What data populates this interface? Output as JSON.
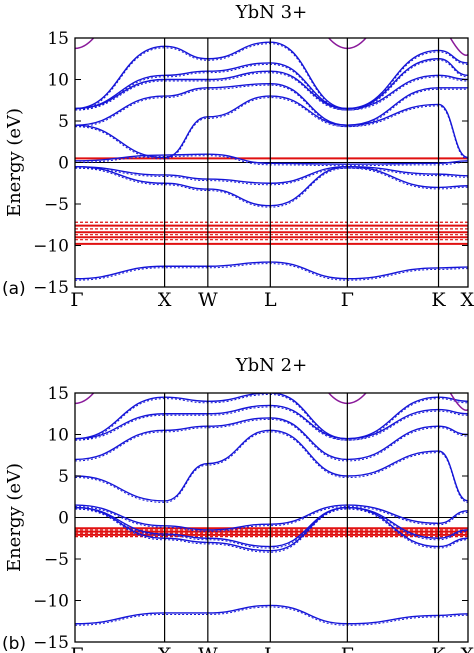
{
  "chart_data": [
    {
      "type": "line",
      "panel_label": "(a)",
      "title": "YbN 3+",
      "ylabel": "Energy (eV)",
      "ylim": [
        -15,
        15
      ],
      "yticks": [
        15,
        10,
        5,
        0,
        -5,
        -10,
        -15
      ],
      "xticks": [
        "Γ",
        "X",
        "W",
        "L",
        "Γ",
        "K",
        "X"
      ],
      "grid": false,
      "legend": "none",
      "colors": {
        "valence_conduction": "#1515d8",
        "f_states": "#e01010",
        "top_band": "#8a1a9a",
        "fermi": "#000000"
      },
      "series": [
        {
          "color": "#1515d8",
          "values": [
            [
              0,
              0.2
            ],
            [
              1,
              0.9
            ],
            [
              2,
              1.0
            ],
            [
              3,
              -0.1
            ],
            [
              4,
              -0.2
            ],
            [
              5,
              -0.1
            ],
            [
              6,
              0.2
            ]
          ]
        },
        {
          "color": "#1515d8",
          "values": [
            [
              0,
              -0.5
            ],
            [
              1,
              -1.5
            ],
            [
              2,
              -2.0
            ],
            [
              3,
              -2.5
            ],
            [
              4,
              -0.5
            ],
            [
              5,
              -1.4
            ],
            [
              6,
              -1.6
            ]
          ]
        },
        {
          "color": "#1515d8",
          "values": [
            [
              0,
              -0.5
            ],
            [
              1,
              -2.5
            ],
            [
              2,
              -3.2
            ],
            [
              3,
              -5.2
            ],
            [
              4,
              -0.5
            ],
            [
              5,
              -3.0
            ],
            [
              6,
              -2.8
            ]
          ]
        },
        {
          "color": "#1515d8",
          "values": [
            [
              0,
              -14.0
            ],
            [
              1,
              -12.5
            ],
            [
              2,
              -12.5
            ],
            [
              3,
              -12.0
            ],
            [
              4,
              -14.0
            ],
            [
              5,
              -12.7
            ],
            [
              6,
              -12.6
            ]
          ]
        },
        {
          "color": "#1515d8",
          "values": [
            [
              0,
              4.5
            ],
            [
              1,
              0.6
            ],
            [
              2,
              5.5
            ],
            [
              3,
              8.0
            ],
            [
              4,
              4.5
            ],
            [
              5,
              7.0
            ],
            [
              6,
              0.6
            ]
          ]
        },
        {
          "color": "#1515d8",
          "values": [
            [
              0,
              4.5
            ],
            [
              1,
              8.0
            ],
            [
              2,
              9.0
            ],
            [
              3,
              9.5
            ],
            [
              4,
              4.5
            ],
            [
              5,
              9.0
            ],
            [
              6,
              9.0
            ]
          ]
        },
        {
          "color": "#1515d8",
          "values": [
            [
              0,
              6.5
            ],
            [
              1,
              10.0
            ],
            [
              2,
              10.0
            ],
            [
              3,
              11.0
            ],
            [
              4,
              6.5
            ],
            [
              5,
              10.5
            ],
            [
              6,
              10.0
            ]
          ]
        },
        {
          "color": "#1515d8",
          "values": [
            [
              0,
              6.5
            ],
            [
              1,
              10.5
            ],
            [
              2,
              11.0
            ],
            [
              3,
              12.0
            ],
            [
              4,
              6.5
            ],
            [
              5,
              12.5
            ],
            [
              6,
              10.5
            ]
          ]
        },
        {
          "color": "#1515d8",
          "values": [
            [
              0,
              6.5
            ],
            [
              1,
              14.0
            ],
            [
              2,
              12.5
            ],
            [
              3,
              14.5
            ],
            [
              4,
              6.5
            ],
            [
              5,
              13.5
            ],
            [
              6,
              12.0
            ]
          ]
        }
      ],
      "f_levels": [
        0.5,
        -7.2,
        -7.6,
        -8.0,
        -8.4,
        -8.7,
        -9.0,
        -9.3,
        -9.8
      ]
    },
    {
      "type": "line",
      "panel_label": "(b)",
      "title": "YbN 2+",
      "ylabel": "Energy (eV)",
      "ylim": [
        -15,
        15
      ],
      "yticks": [
        15,
        10,
        5,
        0,
        -5,
        -10,
        -15
      ],
      "xticks": [
        "Γ",
        "X",
        "W",
        "L",
        "Γ",
        "K",
        "X"
      ],
      "grid": false,
      "legend": "none",
      "colors": {
        "valence_conduction": "#1515d8",
        "f_states": "#e01010",
        "top_band": "#8a1a9a",
        "fermi": "#000000"
      },
      "series": [
        {
          "color": "#1515d8",
          "values": [
            [
              0,
              1.5
            ],
            [
              1,
              -1.0
            ],
            [
              2,
              -1.5
            ],
            [
              3,
              -0.8
            ],
            [
              4,
              1.5
            ],
            [
              5,
              -0.7
            ],
            [
              6,
              0.8
            ]
          ]
        },
        {
          "color": "#1515d8",
          "values": [
            [
              0,
              1.2
            ],
            [
              1,
              -2.0
            ],
            [
              2,
              -2.5
            ],
            [
              3,
              -3.5
            ],
            [
              4,
              1.2
            ],
            [
              5,
              -2.5
            ],
            [
              6,
              -1.5
            ]
          ]
        },
        {
          "color": "#1515d8",
          "values": [
            [
              0,
              1.2
            ],
            [
              1,
              -2.5
            ],
            [
              2,
              -3.0
            ],
            [
              3,
              -4.0
            ],
            [
              4,
              1.2
            ],
            [
              5,
              -3.5
            ],
            [
              6,
              -2.5
            ]
          ]
        },
        {
          "color": "#1515d8",
          "values": [
            [
              0,
              -12.8
            ],
            [
              1,
              -11.5
            ],
            [
              2,
              -11.5
            ],
            [
              3,
              -10.6
            ],
            [
              4,
              -12.8
            ],
            [
              5,
              -11.8
            ],
            [
              6,
              -11.6
            ]
          ]
        },
        {
          "color": "#1515d8",
          "values": [
            [
              0,
              5.0
            ],
            [
              1,
              2.0
            ],
            [
              2,
              6.5
            ],
            [
              3,
              10.5
            ],
            [
              4,
              5.0
            ],
            [
              5,
              8.0
            ],
            [
              6,
              2.0
            ]
          ]
        },
        {
          "color": "#1515d8",
          "values": [
            [
              0,
              7.0
            ],
            [
              1,
              10.5
            ],
            [
              2,
              11.0
            ],
            [
              3,
              12.0
            ],
            [
              4,
              7.0
            ],
            [
              5,
              11.0
            ],
            [
              6,
              10.0
            ]
          ]
        },
        {
          "color": "#1515d8",
          "values": [
            [
              0,
              9.5
            ],
            [
              1,
              12.5
            ],
            [
              2,
              12.5
            ],
            [
              3,
              13.5
            ],
            [
              4,
              9.5
            ],
            [
              5,
              13.0
            ],
            [
              6,
              12.5
            ]
          ]
        },
        {
          "color": "#1515d8",
          "values": [
            [
              0,
              9.5
            ],
            [
              1,
              14.5
            ],
            [
              2,
              14.0
            ],
            [
              3,
              15.0
            ],
            [
              4,
              9.5
            ],
            [
              5,
              14.5
            ],
            [
              6,
              14.0
            ]
          ]
        }
      ],
      "f_levels": [
        -1.3,
        -1.5,
        -1.7,
        -1.9,
        -2.1,
        -2.3
      ]
    }
  ]
}
